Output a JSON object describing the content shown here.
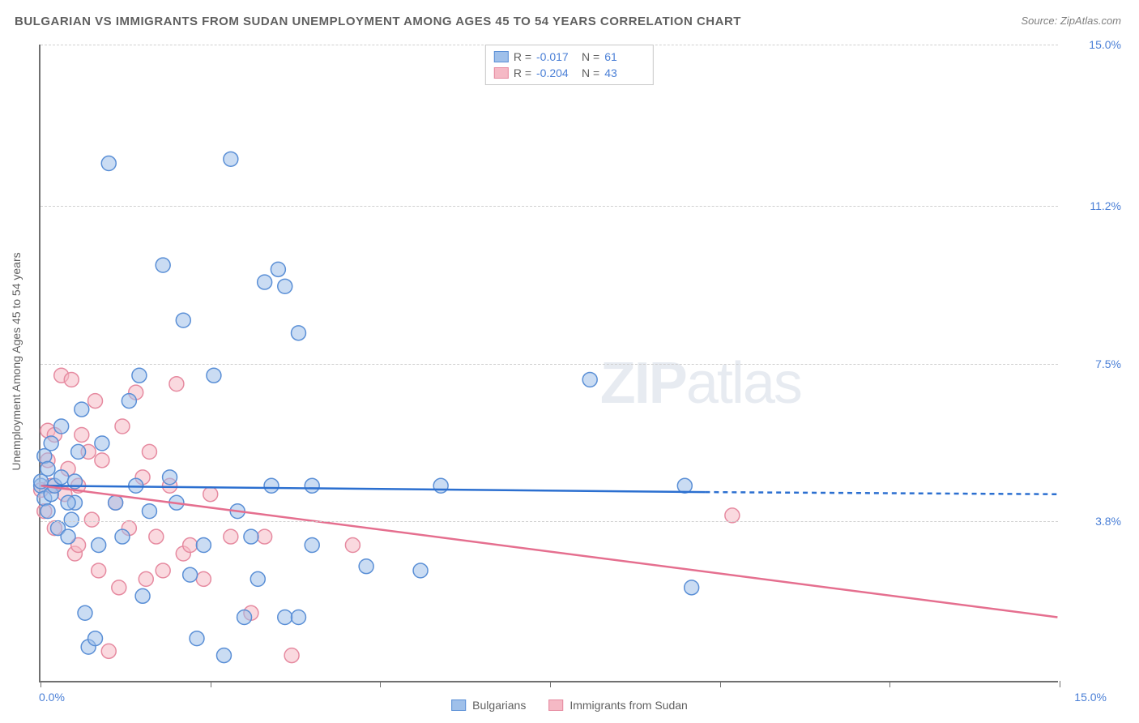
{
  "title": "BULGARIAN VS IMMIGRANTS FROM SUDAN UNEMPLOYMENT AMONG AGES 45 TO 54 YEARS CORRELATION CHART",
  "source": "Source: ZipAtlas.com",
  "y_axis_title": "Unemployment Among Ages 45 to 54 years",
  "watermark_bold": "ZIP",
  "watermark_light": "atlas",
  "chart": {
    "type": "scatter",
    "xlim": [
      0,
      15
    ],
    "ylim": [
      0,
      15
    ],
    "x_tick_positions": [
      0,
      2.5,
      5,
      7.5,
      10,
      12.5,
      15
    ],
    "x_left_label": "0.0%",
    "x_right_label": "15.0%",
    "y_ticks": [
      {
        "pos": 3.8,
        "label": "3.8%"
      },
      {
        "pos": 7.5,
        "label": "7.5%"
      },
      {
        "pos": 11.2,
        "label": "11.2%"
      },
      {
        "pos": 15.0,
        "label": "15.0%"
      }
    ],
    "background_color": "#ffffff",
    "grid_color": "#d0d0d0",
    "axis_color": "#707070",
    "marker_radius": 9,
    "marker_opacity": 0.55,
    "line_width": 2.5
  },
  "series": {
    "blue": {
      "name": "Bulgarians",
      "fill": "#9fc0ea",
      "stroke": "#5a8fd6",
      "line_color": "#2b6fd0",
      "R": "-0.017",
      "N": "61",
      "regression": {
        "x1": 0,
        "y1": 4.6,
        "x2": 9.8,
        "y2": 4.45,
        "dash_x2": 15,
        "dash_y2": 4.4
      },
      "points": [
        [
          0.0,
          4.6
        ],
        [
          0.0,
          4.7
        ],
        [
          0.05,
          4.3
        ],
        [
          0.05,
          5.3
        ],
        [
          0.1,
          5.0
        ],
        [
          0.1,
          4.0
        ],
        [
          0.15,
          4.4
        ],
        [
          0.15,
          5.6
        ],
        [
          0.2,
          4.6
        ],
        [
          0.25,
          3.6
        ],
        [
          0.3,
          4.8
        ],
        [
          0.3,
          6.0
        ],
        [
          0.4,
          3.4
        ],
        [
          0.45,
          3.8
        ],
        [
          0.5,
          4.2
        ],
        [
          0.5,
          4.7
        ],
        [
          0.6,
          6.4
        ],
        [
          0.65,
          1.6
        ],
        [
          0.7,
          0.8
        ],
        [
          0.8,
          1.0
        ],
        [
          0.85,
          3.2
        ],
        [
          0.9,
          5.6
        ],
        [
          1.0,
          12.2
        ],
        [
          1.1,
          4.2
        ],
        [
          1.2,
          3.4
        ],
        [
          1.3,
          6.6
        ],
        [
          1.4,
          4.6
        ],
        [
          1.45,
          7.2
        ],
        [
          1.5,
          2.0
        ],
        [
          1.6,
          4.0
        ],
        [
          1.8,
          9.8
        ],
        [
          1.9,
          4.8
        ],
        [
          2.0,
          4.2
        ],
        [
          2.1,
          8.5
        ],
        [
          2.2,
          2.5
        ],
        [
          2.3,
          1.0
        ],
        [
          2.4,
          3.2
        ],
        [
          2.55,
          7.2
        ],
        [
          2.7,
          0.6
        ],
        [
          2.8,
          12.3
        ],
        [
          2.9,
          4.0
        ],
        [
          3.0,
          1.5
        ],
        [
          3.1,
          3.4
        ],
        [
          3.2,
          2.4
        ],
        [
          3.3,
          9.4
        ],
        [
          3.4,
          4.6
        ],
        [
          3.5,
          9.7
        ],
        [
          3.6,
          1.5
        ],
        [
          3.6,
          9.3
        ],
        [
          3.8,
          1.5
        ],
        [
          3.8,
          8.2
        ],
        [
          4.0,
          4.6
        ],
        [
          4.0,
          3.2
        ],
        [
          4.8,
          2.7
        ],
        [
          5.6,
          2.6
        ],
        [
          5.9,
          4.6
        ],
        [
          8.1,
          7.1
        ],
        [
          9.5,
          4.6
        ],
        [
          9.6,
          2.2
        ],
        [
          0.4,
          4.2
        ],
        [
          0.55,
          5.4
        ]
      ]
    },
    "pink": {
      "name": "Immigrants from Sudan",
      "fill": "#f5b9c5",
      "stroke": "#e68aa0",
      "line_color": "#e56f8f",
      "R": "-0.204",
      "N": "43",
      "regression": {
        "x1": 0,
        "y1": 4.6,
        "x2": 15,
        "y2": 1.5
      },
      "points": [
        [
          0.0,
          4.5
        ],
        [
          0.05,
          4.0
        ],
        [
          0.1,
          5.2
        ],
        [
          0.1,
          5.9
        ],
        [
          0.15,
          4.6
        ],
        [
          0.2,
          3.6
        ],
        [
          0.2,
          5.8
        ],
        [
          0.3,
          7.2
        ],
        [
          0.35,
          4.4
        ],
        [
          0.4,
          5.0
        ],
        [
          0.45,
          7.1
        ],
        [
          0.5,
          3.0
        ],
        [
          0.55,
          4.6
        ],
        [
          0.6,
          5.8
        ],
        [
          0.7,
          5.4
        ],
        [
          0.75,
          3.8
        ],
        [
          0.8,
          6.6
        ],
        [
          0.85,
          2.6
        ],
        [
          0.9,
          5.2
        ],
        [
          1.0,
          0.7
        ],
        [
          1.1,
          4.2
        ],
        [
          1.15,
          2.2
        ],
        [
          1.2,
          6.0
        ],
        [
          1.3,
          3.6
        ],
        [
          1.4,
          6.8
        ],
        [
          1.5,
          4.8
        ],
        [
          1.55,
          2.4
        ],
        [
          1.6,
          5.4
        ],
        [
          1.7,
          3.4
        ],
        [
          1.8,
          2.6
        ],
        [
          1.9,
          4.6
        ],
        [
          2.0,
          7.0
        ],
        [
          2.1,
          3.0
        ],
        [
          2.2,
          3.2
        ],
        [
          2.4,
          2.4
        ],
        [
          2.5,
          4.4
        ],
        [
          2.8,
          3.4
        ],
        [
          3.1,
          1.6
        ],
        [
          3.3,
          3.4
        ],
        [
          3.7,
          0.6
        ],
        [
          4.6,
          3.2
        ],
        [
          10.2,
          3.9
        ],
        [
          0.55,
          3.2
        ]
      ]
    }
  },
  "legend_top": {
    "r_label": "R =",
    "n_label": "N ="
  }
}
